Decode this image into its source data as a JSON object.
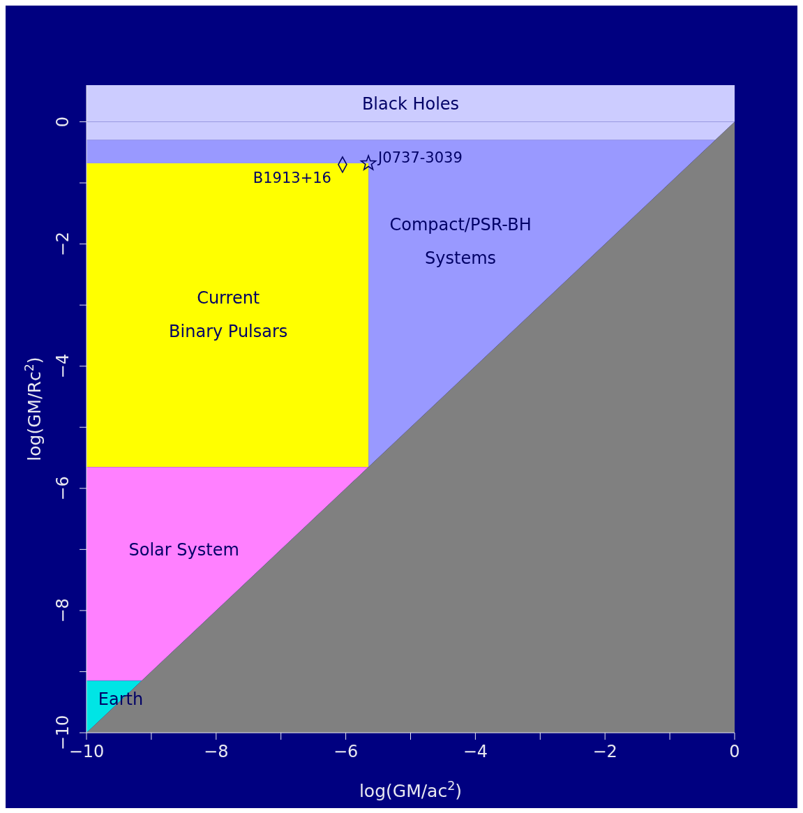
{
  "chart_data": {
    "type": "area",
    "stacked": true,
    "xlabel": "log(GM/ac$^{2}$)",
    "ylabel": "log(GM/Rc$^{2}$)",
    "xlim": [
      -10,
      0
    ],
    "ylim": [
      -10,
      0.6
    ],
    "xticks": [
      -10,
      {
        "value": -9,
        "label": null
      },
      -8,
      {
        "value": -7,
        "label": null
      },
      -6,
      {
        "value": -5,
        "label": null
      },
      -4,
      {
        "value": -3,
        "label": null
      },
      -2,
      {
        "value": -1,
        "label": null
      },
      0
    ],
    "yticks": [
      -10,
      {
        "value": -9,
        "label": null
      },
      -8,
      {
        "value": -7,
        "label": null
      },
      -6,
      {
        "value": -5,
        "label": null
      },
      -4,
      {
        "value": -3,
        "label": null
      },
      -2,
      {
        "value": -1,
        "label": null
      },
      0
    ],
    "bands": [
      {
        "axis": "y",
        "from": 0,
        "to": 0.6,
        "label": "Black Holes",
        "color": "#ccccff"
      }
    ],
    "x": [
      -10,
      -9.15,
      -5.65,
      -5.65,
      -0.3,
      0
    ],
    "series": [
      {
        "color": "#ccccff",
        "values": [
          -0.3,
          -0.3,
          -0.3,
          -0.3,
          -0.3,
          0
        ]
      },
      {
        "name": "Compact/PSR-BH\nSystems",
        "color": "#9999ff",
        "values": [
          -0.38,
          -0.38,
          -0.38,
          -5.35,
          0,
          null
        ]
      },
      {
        "name": "Current\nBinary Pulsars",
        "color": "#ffff00",
        "values": [
          -4.97,
          -4.97,
          -4.97,
          null,
          null,
          null
        ]
      },
      {
        "name": "Solar System",
        "color": "#ff80ff",
        "values": [
          -3.5,
          -3.5,
          0,
          null,
          null,
          null
        ]
      },
      {
        "name": "Earth",
        "color": "#00e5e5",
        "values": [
          -0.85,
          0,
          null,
          null,
          null,
          null
        ]
      },
      {
        "color": "#808080",
        "values": [
          0,
          -0.85,
          -4.35,
          -4.35,
          -9.7,
          -10
        ]
      },
      {
        "type": "scatter",
        "name": "B1913+16",
        "marker": "diamond",
        "color": "#000066",
        "x": [
          -6.05
        ],
        "values": [
          -0.7
        ]
      },
      {
        "type": "scatter",
        "name": "J0737-3039",
        "marker": "star",
        "color": "#000066",
        "x": [
          -5.65
        ],
        "values": [
          -0.68
        ]
      }
    ]
  }
}
